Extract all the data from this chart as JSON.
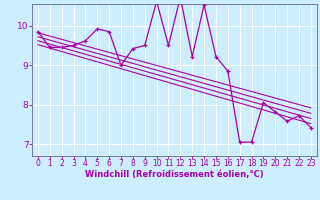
{
  "title": "",
  "xlabel": "Windchill (Refroidissement éolien,°C)",
  "ylabel": "",
  "bg_color": "#cceeff",
  "line_color": "#aa00aa",
  "spine_color": "#666688",
  "xlim": [
    -0.5,
    23.5
  ],
  "ylim": [
    6.7,
    10.55
  ],
  "xticks": [
    0,
    1,
    2,
    3,
    4,
    5,
    6,
    7,
    8,
    9,
    10,
    11,
    12,
    13,
    14,
    15,
    16,
    17,
    18,
    19,
    20,
    21,
    22,
    23
  ],
  "yticks": [
    7,
    8,
    9,
    10
  ],
  "main_series": {
    "x": [
      0,
      1,
      2,
      3,
      4,
      5,
      6,
      7,
      8,
      9,
      10,
      11,
      12,
      13,
      14,
      15,
      16,
      17,
      18,
      19,
      20,
      21,
      22,
      23
    ],
    "y": [
      9.85,
      9.45,
      9.45,
      9.5,
      9.62,
      9.92,
      9.85,
      9.0,
      9.42,
      9.5,
      10.62,
      9.5,
      10.72,
      9.22,
      10.52,
      9.22,
      8.85,
      7.05,
      7.05,
      8.05,
      7.82,
      7.58,
      7.72,
      7.42
    ]
  },
  "regression_lines": [
    {
      "x": [
        0,
        23
      ],
      "y": [
        9.82,
        7.92
      ]
    },
    {
      "x": [
        0,
        23
      ],
      "y": [
        9.72,
        7.78
      ]
    },
    {
      "x": [
        0,
        23
      ],
      "y": [
        9.62,
        7.65
      ]
    },
    {
      "x": [
        0,
        23
      ],
      "y": [
        9.52,
        7.52
      ]
    }
  ],
  "tick_fontsize": 5.5,
  "xlabel_fontsize": 6.0
}
